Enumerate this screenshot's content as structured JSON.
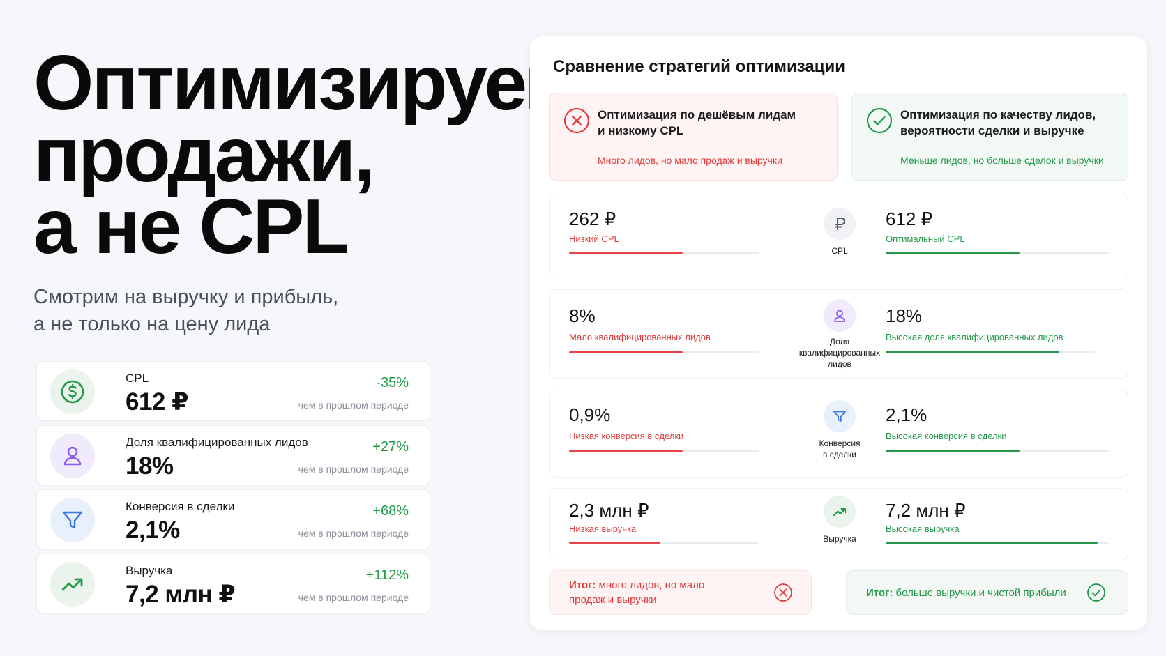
{
  "hero": {
    "title_line1": "Оптимизируем",
    "title_line2": "продажи,",
    "title_line3": "а не CPL",
    "subtitle_line1": "Смотрим на выручку и прибыль,",
    "subtitle_line2": "а не только на цену лида"
  },
  "metrics": [
    {
      "label": "CPL",
      "value": "612 ₽",
      "change": "-35%",
      "note": "чем в прошлом периоде",
      "icon": "dollar-icon"
    },
    {
      "label": "Доля квалифицированных лидов",
      "value": "18%",
      "change": "+27%",
      "note": "чем в прошлом периоде",
      "icon": "user-icon"
    },
    {
      "label": "Конверсия в сделки",
      "value": "2,1%",
      "change": "+68%",
      "note": "чем в прошлом периоде",
      "icon": "funnel-icon"
    },
    {
      "label": "Выручка",
      "value": "7,2 млн ₽",
      "change": "+112%",
      "note": "чем в прошлом периоде",
      "icon": "trend-up-icon"
    }
  ],
  "comparison": {
    "title": "Сравнение стратегий оптимизации",
    "bad_strategy": {
      "title_line1": "Оптимизация по дешёвым лидам",
      "title_line2": "и низкому CPL",
      "note": "Много лидов, но мало продаж и выручки"
    },
    "good_strategy": {
      "title_line1": "Оптимизация по качеству лидов,",
      "title_line2": "вероятности сделки и выручке",
      "note": "Меньше лидов, но больше сделок и выручки"
    },
    "rows": [
      {
        "left_value": "262 ₽",
        "left_label": "Низкий CPL",
        "left_fill": 0.6,
        "mid_label_line1": "CPL",
        "mid_label_line2": "",
        "mid_label_line3": "",
        "right_value": "612 ₽",
        "right_label": "Оптимальный CPL",
        "right_fill": 0.6
      },
      {
        "left_value": "8%",
        "left_label": "Мало квалифицированных лидов",
        "left_fill": 0.6,
        "mid_label_line1": "Доля",
        "mid_label_line2": "квалифицированных",
        "mid_label_line3": "лидов",
        "right_value": "18%",
        "right_label": "Высокая доля квалифицированных лидов",
        "right_fill": 0.83
      },
      {
        "left_value": "0,9%",
        "left_label": "Низкая конверсия в сделки",
        "left_fill": 0.6,
        "mid_label_line1": "Конверсия",
        "mid_label_line2": "в сделки",
        "mid_label_line3": "",
        "right_value": "2,1%",
        "right_label": "Высокая конверсия в сделки",
        "right_fill": 0.6
      },
      {
        "left_value": "2,3 млн ₽",
        "left_label": "Низкая выручка",
        "left_fill": 0.48,
        "mid_label_line1": "Выручка",
        "mid_label_line2": "",
        "mid_label_line3": "",
        "right_value": "7,2 млн ₽",
        "right_label": "Высокая выручка",
        "right_fill": 0.95
      }
    ],
    "summary_bad": {
      "prefix": "Итог:",
      "text_line1": "много лидов, но мало",
      "text_line2": "продаж и выручки"
    },
    "summary_good": {
      "prefix": "Итог:",
      "text": "больше выручки и чистой прибыли"
    }
  },
  "colors": {
    "red": "#e03a3a",
    "green": "#22984a",
    "purple": "#8a5cf0",
    "blue": "#3a78e0"
  }
}
